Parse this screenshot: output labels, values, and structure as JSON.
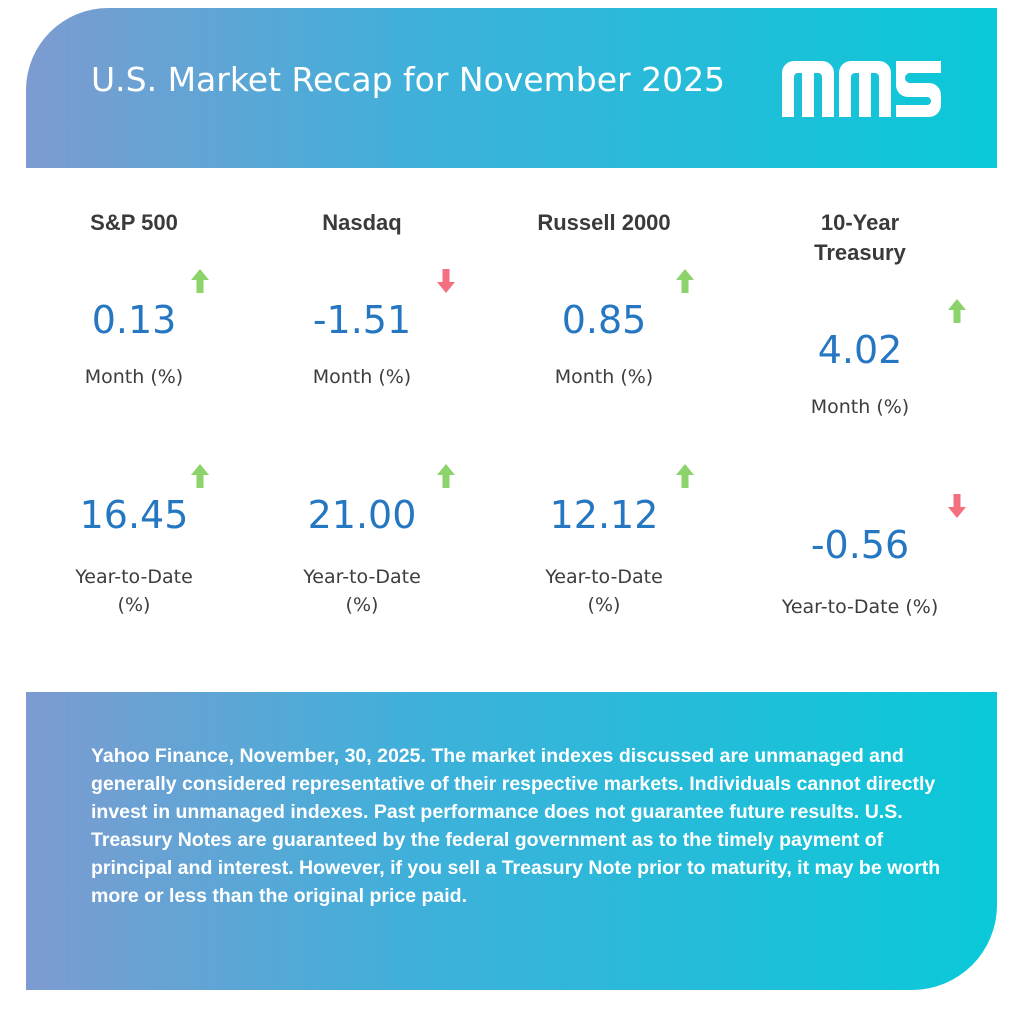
{
  "header": {
    "title": "U.S. Market Recap for November 2025",
    "logo_name": "mms-logo"
  },
  "colors": {
    "up": "#8bd36a",
    "down": "#f2707f",
    "value": "#2577c2"
  },
  "indexes": [
    {
      "name": "S&P 500",
      "month": {
        "value": "0.13",
        "label": "Month (%)",
        "direction": "up"
      },
      "ytd": {
        "value": "16.45",
        "label": "Year-to-Date (%)",
        "direction": "up"
      }
    },
    {
      "name": "Nasdaq",
      "month": {
        "value": "-1.51",
        "label": "Month (%)",
        "direction": "down"
      },
      "ytd": {
        "value": "21.00",
        "label": "Year-to-Date (%)",
        "direction": "up"
      }
    },
    {
      "name": "Russell 2000",
      "month": {
        "value": "0.85",
        "label": "Month (%)",
        "direction": "up"
      },
      "ytd": {
        "value": "12.12",
        "label": "Year-to-Date (%)",
        "direction": "up"
      }
    },
    {
      "name": "10-Year Treasury",
      "month": {
        "value": "4.02",
        "label": "Month (%)",
        "direction": "up"
      },
      "ytd": {
        "value": "-0.56",
        "label": "Year-to-Date (%)",
        "direction": "down"
      }
    }
  ],
  "footer": {
    "disclaimer": "Yahoo Finance, November, 30, 2025. The market indexes discussed are unmanaged and generally considered representative of their respective markets. Individuals cannot directly invest in unmanaged indexes. Past performance does not guarantee future results. U.S. Treasury Notes are guaranteed by the federal government as to the timely payment of principal and interest. However, if you sell a Treasury Note prior to maturity, it may be worth more or less than the original price paid."
  }
}
